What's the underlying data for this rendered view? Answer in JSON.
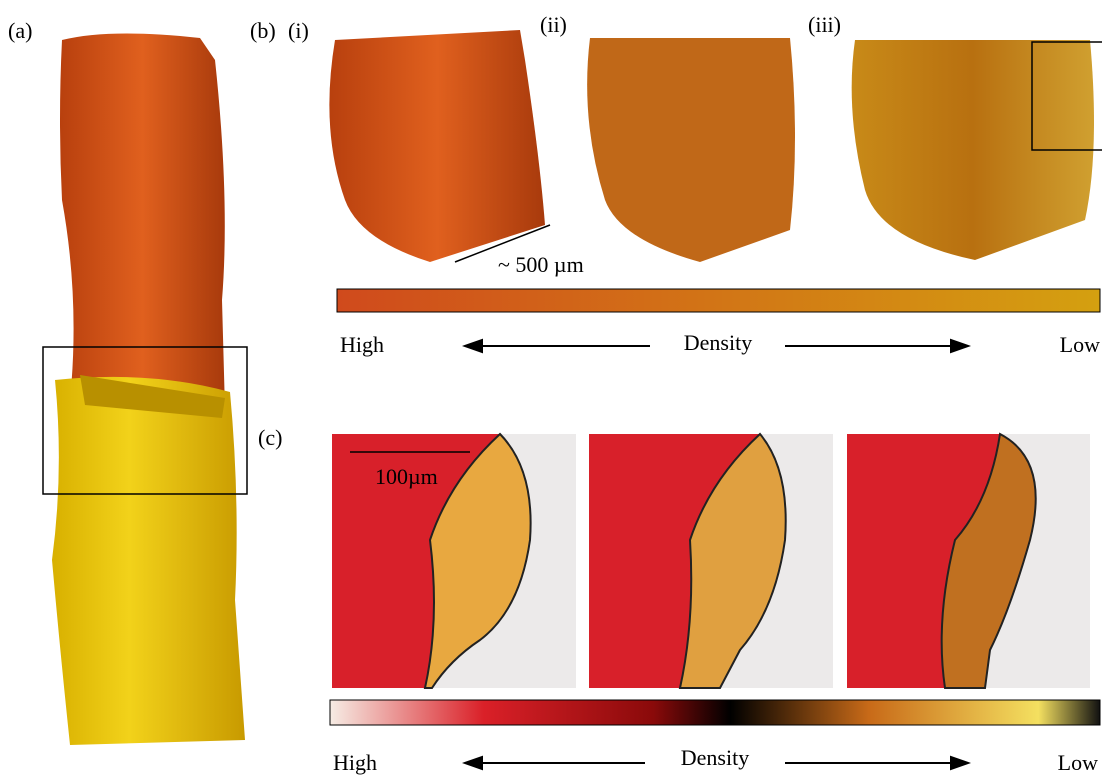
{
  "panels": {
    "a": {
      "label": "(a)"
    },
    "b": {
      "label": "(b)",
      "sublabels": [
        "(i)",
        "(ii)",
        "(iii)"
      ],
      "scale_bar": "~ 500 µm",
      "colorbar": {
        "left": "High",
        "center": "Density",
        "right": "Low"
      }
    },
    "c": {
      "label": "(c)",
      "scale_bar": "100µm",
      "colorbar": {
        "left": "High",
        "center": "Density",
        "right": "Low"
      }
    }
  }
}
